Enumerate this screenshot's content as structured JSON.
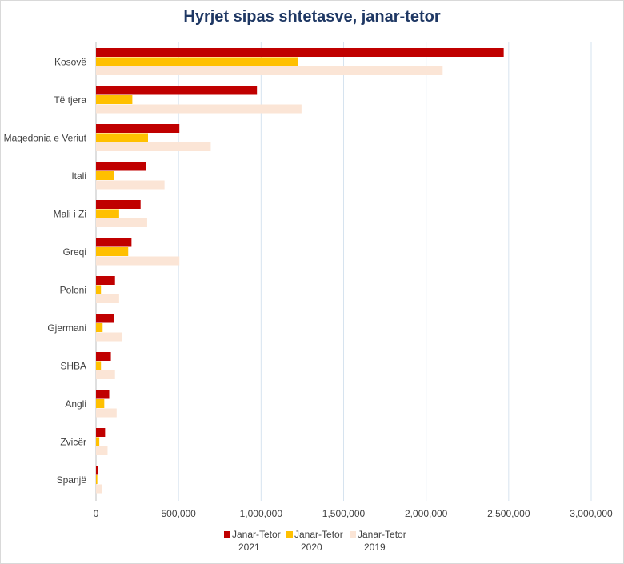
{
  "chart_data": {
    "type": "bar",
    "orientation": "horizontal",
    "title": "Hyrjet sipas  shtetasve,  janar-tetor",
    "categories": [
      "Kosovë",
      "Të tjera",
      "Maqedonia e Veriut",
      "Itali",
      "Mali i Zi",
      "Greqi",
      "Poloni",
      "Gjermani",
      "SHBA",
      "Angli",
      "Zvicër",
      "Spanjë"
    ],
    "series": [
      {
        "name": "Janar-Tetor 2021",
        "name_lines": [
          "Janar-Tetor",
          "2021"
        ],
        "color": "#c00000",
        "values": [
          2470000,
          975000,
          505000,
          305000,
          270000,
          215000,
          115000,
          110000,
          90000,
          80000,
          55000,
          12000
        ]
      },
      {
        "name": "Janar-Tetor 2020",
        "name_lines": [
          "Janar-Tetor",
          "2020"
        ],
        "color": "#ffc000",
        "values": [
          1225000,
          220000,
          315000,
          110000,
          140000,
          195000,
          30000,
          40000,
          30000,
          50000,
          20000,
          8000
        ]
      },
      {
        "name": "Janar-Tetor 2019",
        "name_lines": [
          "Janar-Tetor",
          "2019"
        ],
        "color": "#fbe5d6",
        "values": [
          2100000,
          1245000,
          695000,
          415000,
          310000,
          505000,
          140000,
          160000,
          115000,
          125000,
          70000,
          35000
        ]
      }
    ],
    "xlim": [
      0,
      3000000
    ],
    "ticks": [
      0,
      500000,
      1000000,
      1500000,
      2000000,
      2500000,
      3000000
    ],
    "tick_labels": [
      "0",
      "500,000",
      "1,000,000",
      "1,500,000",
      "2,000,000",
      "2,500,000",
      "3,000,000"
    ],
    "grid": true,
    "legend": "bottom"
  }
}
